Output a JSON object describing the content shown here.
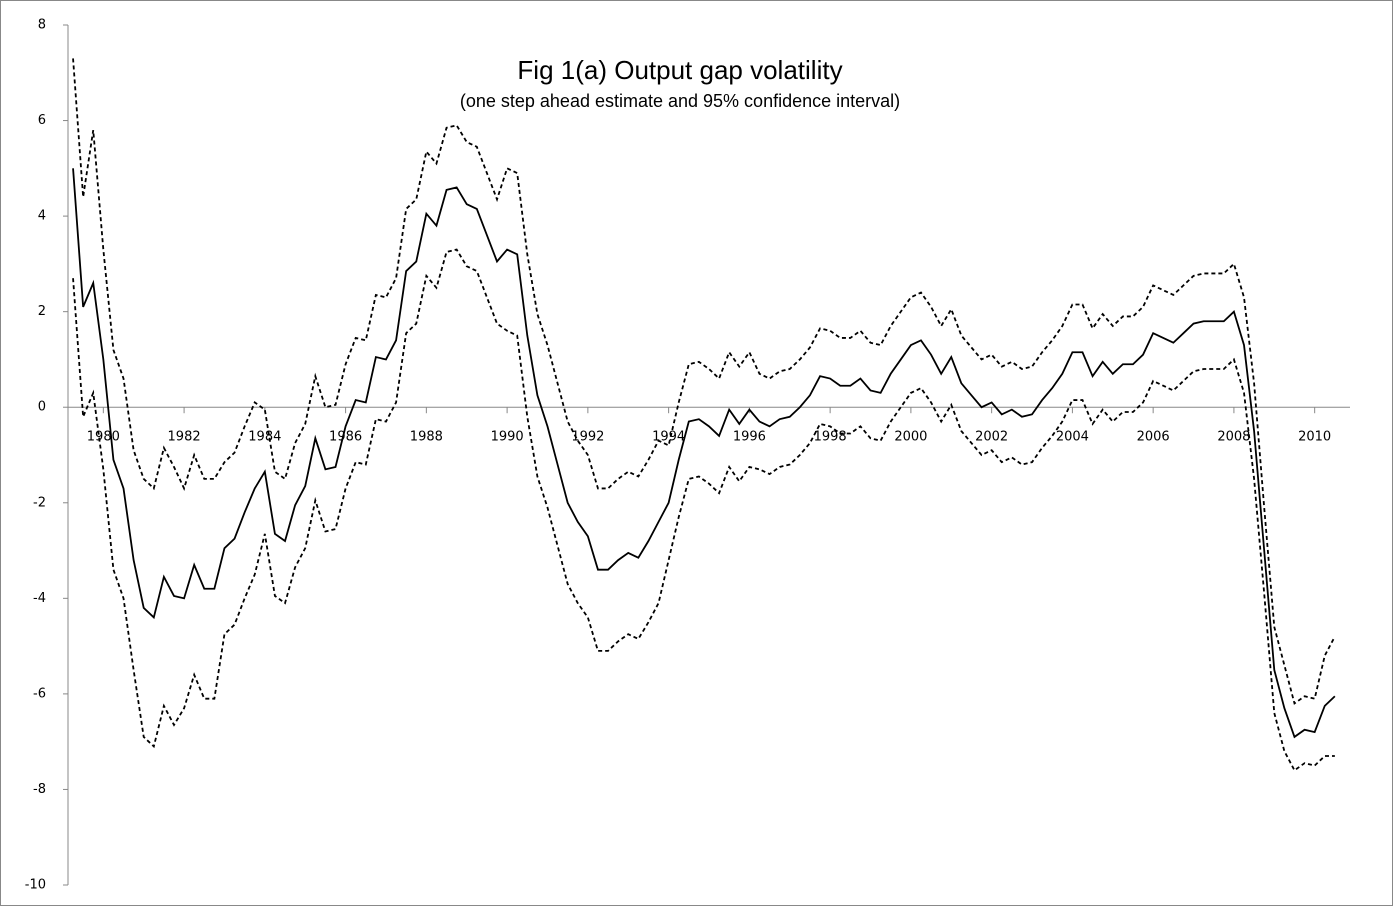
{
  "chart_data": {
    "type": "line",
    "title": "Fig 1(a) Output gap volatility",
    "subtitle": "(one step ahead estimate and 95% confidence interval)",
    "x": [
      1979.25,
      1979.5,
      1979.75,
      1980,
      1980.25,
      1980.5,
      1980.75,
      1981,
      1981.25,
      1981.5,
      1981.75,
      1982,
      1982.25,
      1982.5,
      1982.75,
      1983,
      1983.25,
      1983.5,
      1983.75,
      1984,
      1984.25,
      1984.5,
      1984.75,
      1985,
      1985.25,
      1985.5,
      1985.75,
      1986,
      1986.25,
      1986.5,
      1986.75,
      1987,
      1987.25,
      1987.5,
      1987.75,
      1988,
      1988.25,
      1988.5,
      1988.75,
      1989,
      1989.25,
      1989.5,
      1989.75,
      1990,
      1990.25,
      1990.5,
      1990.75,
      1991,
      1991.25,
      1991.5,
      1991.75,
      1992,
      1992.25,
      1992.5,
      1992.75,
      1993,
      1993.25,
      1993.5,
      1993.75,
      1994,
      1994.25,
      1994.5,
      1994.75,
      1995,
      1995.25,
      1995.5,
      1995.75,
      1996,
      1996.25,
      1996.5,
      1996.75,
      1997,
      1997.25,
      1997.5,
      1997.75,
      1998,
      1998.25,
      1998.5,
      1998.75,
      1999,
      1999.25,
      1999.5,
      1999.75,
      2000,
      2000.25,
      2000.5,
      2000.75,
      2001,
      2001.25,
      2001.5,
      2001.75,
      2002,
      2002.25,
      2002.5,
      2002.75,
      2003,
      2003.25,
      2003.5,
      2003.75,
      2004,
      2004.25,
      2004.5,
      2004.75,
      2005,
      2005.25,
      2005.5,
      2005.75,
      2006,
      2006.25,
      2006.5,
      2006.75,
      2007,
      2007.25,
      2007.5,
      2007.75,
      2008,
      2008.25,
      2008.5,
      2008.75,
      2009,
      2009.25,
      2009.5,
      2009.75,
      2010,
      2010.25,
      2010.5
    ],
    "series": [
      {
        "color": "#000000",
        "dashed": false,
        "values": [
          5.0,
          2.1,
          2.6,
          1.0,
          -1.1,
          -1.7,
          -3.2,
          -4.2,
          -4.4,
          -3.55,
          -3.95,
          -4.0,
          -3.3,
          -3.8,
          -3.8,
          -2.95,
          -2.75,
          -2.2,
          -1.7,
          -1.35,
          -2.65,
          -2.8,
          -2.05,
          -1.65,
          -0.65,
          -1.3,
          -1.25,
          -0.4,
          0.15,
          0.1,
          1.05,
          1.0,
          1.4,
          2.85,
          3.05,
          4.05,
          3.8,
          4.55,
          4.6,
          4.25,
          4.15,
          3.6,
          3.05,
          3.3,
          3.2,
          1.5,
          0.25,
          -0.4,
          -1.2,
          -2.0,
          -2.4,
          -2.7,
          -3.4,
          -3.4,
          -3.2,
          -3.05,
          -3.15,
          -2.8,
          -2.4,
          -2.0,
          -1.1,
          -0.3,
          -0.25,
          -0.4,
          -0.6,
          -0.05,
          -0.35,
          -0.05,
          -0.3,
          -0.4,
          -0.25,
          -0.2,
          0.0,
          0.25,
          0.65,
          0.6,
          0.45,
          0.45,
          0.6,
          0.35,
          0.3,
          0.7,
          1.0,
          1.3,
          1.4,
          1.1,
          0.7,
          1.05,
          0.5,
          0.25,
          0.0,
          0.1,
          -0.15,
          -0.05,
          -0.2,
          -0.15,
          0.15,
          0.4,
          0.7,
          1.15,
          1.15,
          0.65,
          0.95,
          0.7,
          0.9,
          0.9,
          1.1,
          1.55,
          1.45,
          1.35,
          1.55,
          1.75,
          1.8,
          1.8,
          1.8,
          2.0,
          1.3,
          -0.5,
          -3.0,
          -5.5,
          -6.3,
          -6.9,
          -6.75,
          -6.8,
          -6.25,
          -6.05
        ]
      },
      {
        "color": "#000000",
        "dashed": true,
        "values": [
          7.3,
          4.4,
          5.8,
          3.3,
          1.2,
          0.6,
          -0.9,
          -1.5,
          -1.7,
          -0.85,
          -1.25,
          -1.7,
          -1.0,
          -1.5,
          -1.5,
          -1.15,
          -0.95,
          -0.4,
          0.1,
          -0.05,
          -1.35,
          -1.5,
          -0.75,
          -0.35,
          0.65,
          0.0,
          0.05,
          0.9,
          1.45,
          1.4,
          2.35,
          2.3,
          2.7,
          4.15,
          4.35,
          5.35,
          5.1,
          5.85,
          5.9,
          5.55,
          5.45,
          4.9,
          4.35,
          5.0,
          4.9,
          3.2,
          1.95,
          1.3,
          0.5,
          -0.3,
          -0.7,
          -1.0,
          -1.7,
          -1.7,
          -1.5,
          -1.35,
          -1.45,
          -1.1,
          -0.7,
          -0.8,
          0.1,
          0.9,
          0.95,
          0.8,
          0.6,
          1.15,
          0.85,
          1.15,
          0.7,
          0.6,
          0.75,
          0.8,
          1.0,
          1.25,
          1.65,
          1.6,
          1.45,
          1.45,
          1.6,
          1.35,
          1.3,
          1.7,
          2.0,
          2.3,
          2.4,
          2.1,
          1.7,
          2.05,
          1.5,
          1.25,
          1.0,
          1.1,
          0.85,
          0.95,
          0.8,
          0.85,
          1.15,
          1.4,
          1.7,
          2.15,
          2.15,
          1.65,
          1.95,
          1.7,
          1.9,
          1.9,
          2.1,
          2.55,
          2.45,
          2.35,
          2.55,
          2.75,
          2.8,
          2.8,
          2.8,
          3.0,
          2.3,
          0.5,
          -2.1,
          -4.6,
          -5.4,
          -6.2,
          -6.05,
          -6.1,
          -5.2,
          -4.8
        ]
      },
      {
        "color": "#000000",
        "dashed": true,
        "values": [
          2.7,
          -0.2,
          0.3,
          -1.3,
          -3.4,
          -4.0,
          -5.5,
          -6.9,
          -7.1,
          -6.25,
          -6.65,
          -6.3,
          -5.6,
          -6.1,
          -6.1,
          -4.75,
          -4.55,
          -4.0,
          -3.5,
          -2.65,
          -3.95,
          -4.1,
          -3.35,
          -2.95,
          -1.95,
          -2.6,
          -2.55,
          -1.7,
          -1.15,
          -1.2,
          -0.25,
          -0.3,
          0.1,
          1.55,
          1.75,
          2.75,
          2.5,
          3.25,
          3.3,
          2.95,
          2.85,
          2.3,
          1.75,
          1.6,
          1.5,
          -0.2,
          -1.45,
          -2.1,
          -2.9,
          -3.7,
          -4.1,
          -4.4,
          -5.1,
          -5.1,
          -4.9,
          -4.75,
          -4.85,
          -4.5,
          -4.1,
          -3.2,
          -2.3,
          -1.5,
          -1.45,
          -1.6,
          -1.8,
          -1.25,
          -1.55,
          -1.25,
          -1.3,
          -1.4,
          -1.25,
          -1.2,
          -1.0,
          -0.75,
          -0.35,
          -0.4,
          -0.55,
          -0.55,
          -0.4,
          -0.65,
          -0.7,
          -0.3,
          0.0,
          0.3,
          0.4,
          0.1,
          -0.3,
          0.05,
          -0.5,
          -0.75,
          -1.0,
          -0.9,
          -1.15,
          -1.05,
          -1.2,
          -1.15,
          -0.85,
          -0.6,
          -0.3,
          0.15,
          0.15,
          -0.35,
          -0.05,
          -0.3,
          -0.1,
          -0.1,
          0.1,
          0.55,
          0.45,
          0.35,
          0.55,
          0.75,
          0.8,
          0.8,
          0.8,
          1.0,
          0.3,
          -1.5,
          -3.9,
          -6.4,
          -7.2,
          -7.6,
          -7.45,
          -7.5,
          -7.3,
          -7.3
        ]
      }
    ],
    "xlim": [
      1979.125,
      2010.875
    ],
    "xticks": [
      1980,
      1982,
      1984,
      1986,
      1988,
      1990,
      1992,
      1994,
      1996,
      1998,
      2000,
      2002,
      2004,
      2006,
      2008,
      2010
    ],
    "ylim": [
      -10,
      8
    ],
    "yticks": [
      -10,
      -8,
      -6,
      -4,
      -2,
      0,
      2,
      4,
      6,
      8
    ]
  }
}
